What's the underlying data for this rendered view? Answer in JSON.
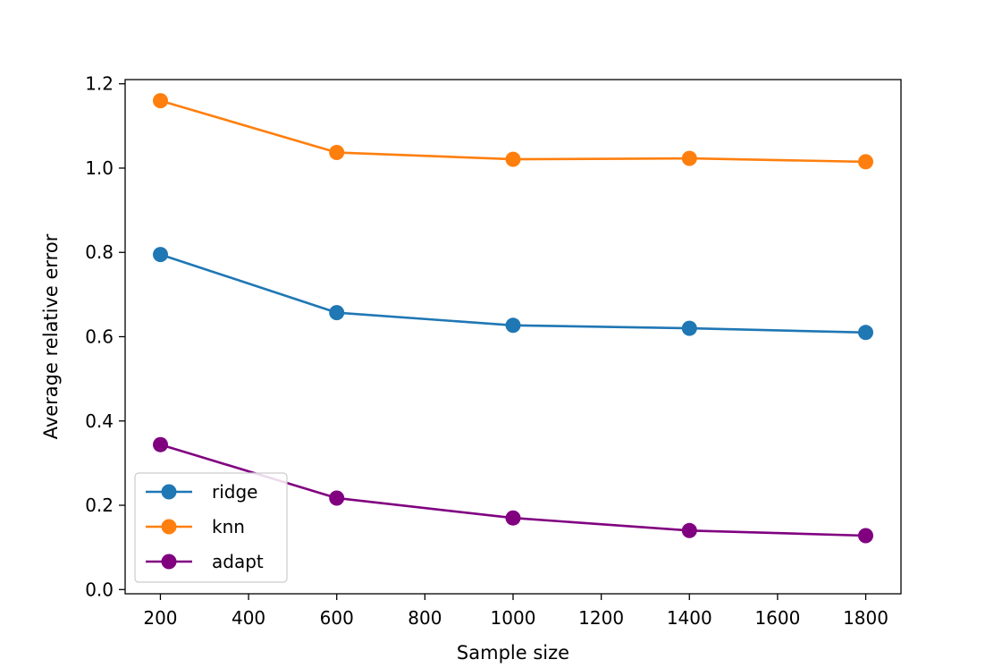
{
  "chart_data": {
    "type": "line",
    "title": "",
    "xlabel": "Sample size",
    "ylabel": "Average relative error",
    "x": [
      200,
      600,
      1000,
      1400,
      1800
    ],
    "xlim": [
      120,
      1880
    ],
    "ylim": [
      -0.01,
      1.21
    ],
    "xticks": [
      200,
      400,
      600,
      800,
      1000,
      1200,
      1400,
      1600,
      1800
    ],
    "xtick_labels": [
      "200",
      "400",
      "600",
      "800",
      "1000",
      "1200",
      "1400",
      "1600",
      "1800"
    ],
    "yticks": [
      0.0,
      0.2,
      0.4,
      0.6,
      0.8,
      1.0,
      1.2
    ],
    "ytick_labels": [
      "0.0",
      "0.2",
      "0.4",
      "0.6",
      "0.8",
      "1.0",
      "1.2"
    ],
    "grid": false,
    "legend_position": "lower-left",
    "series": [
      {
        "name": "ridge",
        "color": "#1f77b4",
        "marker": "circle",
        "values": [
          0.795,
          0.657,
          0.627,
          0.62,
          0.61
        ]
      },
      {
        "name": "knn",
        "color": "#ff7f0e",
        "marker": "circle",
        "values": [
          1.16,
          1.037,
          1.021,
          1.023,
          1.015
        ]
      },
      {
        "name": "adapt",
        "color": "#800080",
        "marker": "circle",
        "values": [
          0.344,
          0.217,
          0.17,
          0.14,
          0.128
        ]
      }
    ]
  }
}
